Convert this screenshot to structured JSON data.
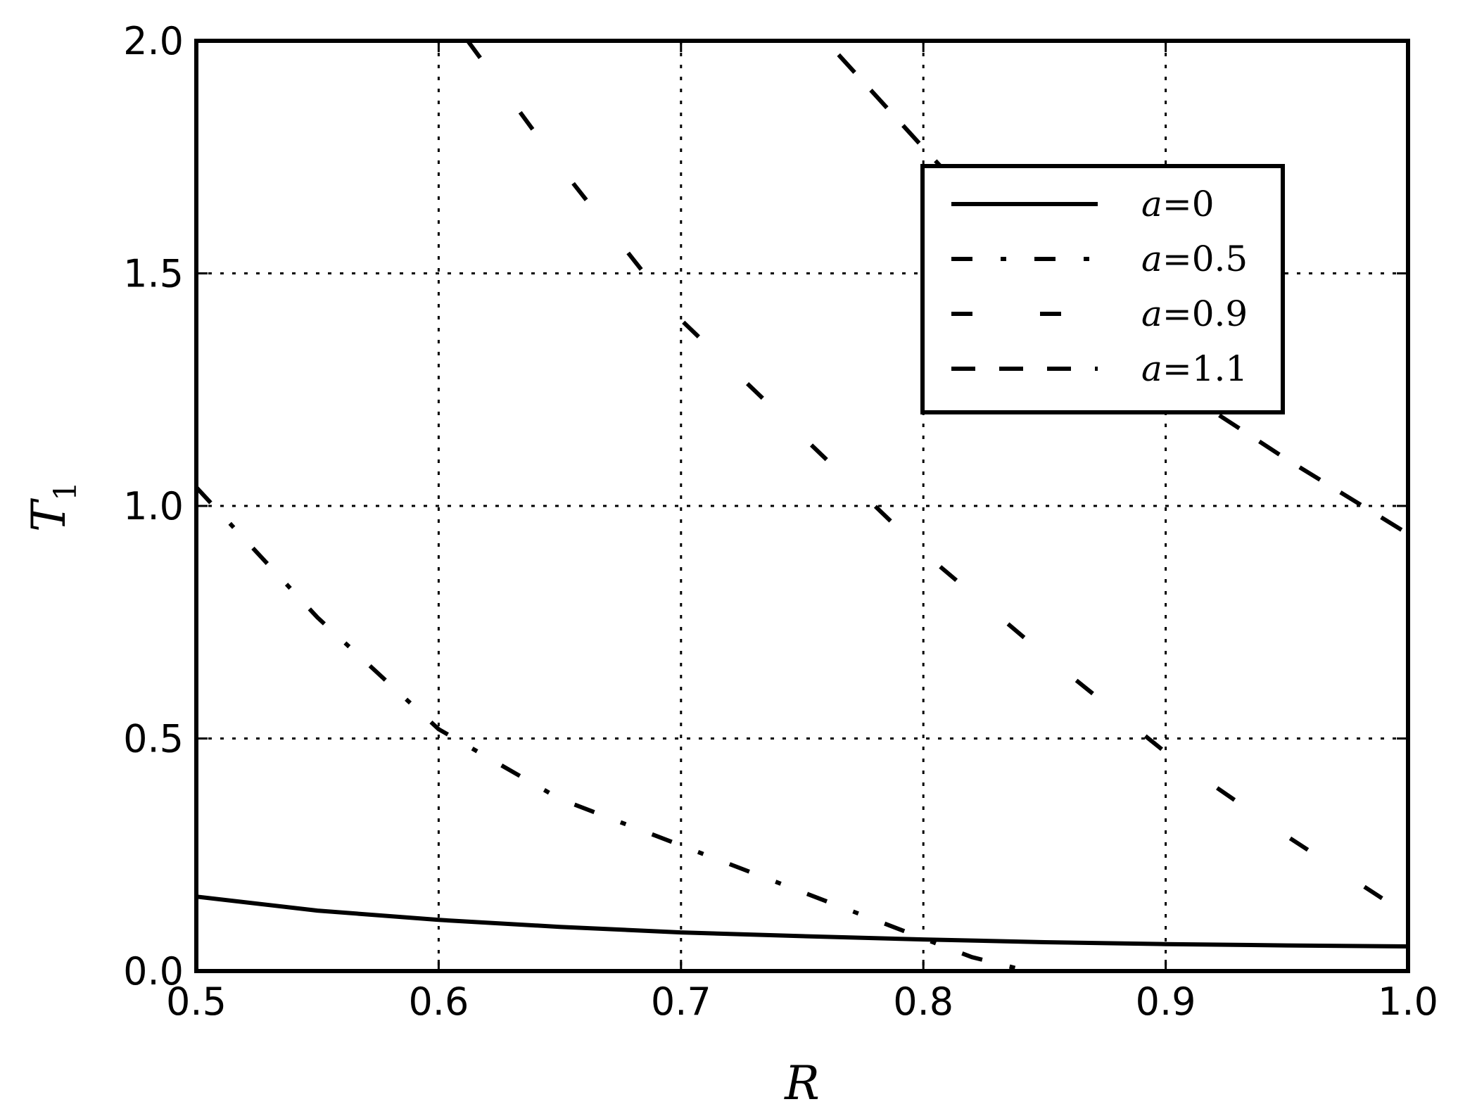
{
  "chart_data": {
    "type": "line",
    "xlabel": "R",
    "ylabel": "T",
    "ylabel_subscript": "1",
    "xlim": [
      0.5,
      1.0
    ],
    "ylim": [
      0.0,
      2.0
    ],
    "xticks": [
      "0.5",
      "0.6",
      "0.7",
      "0.8",
      "0.9",
      "1.0"
    ],
    "yticks": [
      "0.0",
      "0.5",
      "1.0",
      "1.5",
      "2.0"
    ],
    "grid": true,
    "legend_position": "upper-right",
    "colors": {
      "line": "#000000",
      "background": "#ffffff"
    },
    "series": [
      {
        "name": "a=0",
        "var": "a",
        "value": "=0",
        "style": "solid",
        "x": [
          0.5,
          0.55,
          0.6,
          0.65,
          0.7,
          0.75,
          0.8,
          0.85,
          0.9,
          0.95,
          1.0
        ],
        "y": [
          0.16,
          0.13,
          0.11,
          0.095,
          0.083,
          0.075,
          0.068,
          0.062,
          0.058,
          0.055,
          0.053
        ]
      },
      {
        "name": "a=0.5",
        "var": "a",
        "value": "=0.5",
        "style": "dashdot",
        "x": [
          0.5,
          0.55,
          0.6,
          0.65,
          0.7,
          0.75,
          0.8,
          0.82,
          0.843
        ],
        "y": [
          1.04,
          0.76,
          0.52,
          0.37,
          0.27,
          0.17,
          0.07,
          0.03,
          0.0
        ]
      },
      {
        "name": "a=0.9",
        "var": "a",
        "value": "=0.9",
        "style": "longdash",
        "x": [
          0.612,
          0.65,
          0.7,
          0.75,
          0.8,
          0.85,
          0.9,
          0.95,
          1.0
        ],
        "y": [
          2.0,
          1.73,
          1.4,
          1.15,
          0.9,
          0.68,
          0.47,
          0.29,
          0.12
        ]
      },
      {
        "name": "a=1.1",
        "var": "a",
        "value": "=1.1",
        "style": "dashed",
        "x": [
          0.765,
          0.8,
          0.85,
          0.9,
          0.95,
          1.0
        ],
        "y": [
          1.97,
          1.77,
          1.49,
          1.27,
          1.1,
          0.94
        ]
      }
    ]
  }
}
